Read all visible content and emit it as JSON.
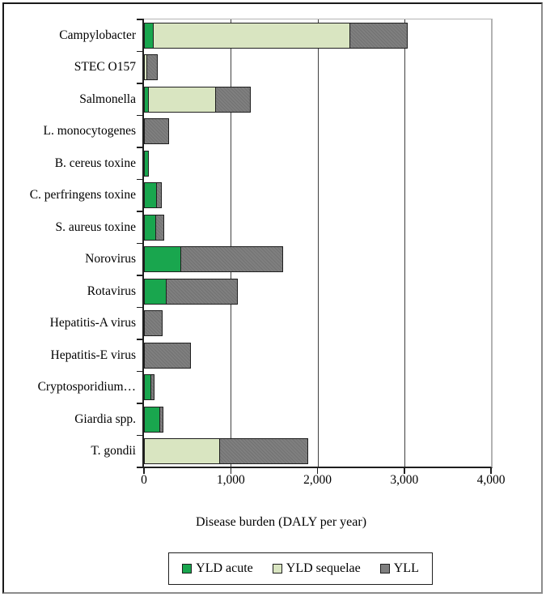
{
  "chart_data": {
    "type": "bar",
    "orientation": "horizontal",
    "stacked": true,
    "xlabel": "Disease burden (DALY per year)",
    "xlim": [
      0,
      4000
    ],
    "xticks": [
      {
        "value": 0,
        "label": "0"
      },
      {
        "value": 1000,
        "label": "1,000"
      },
      {
        "value": 2000,
        "label": "2,000"
      },
      {
        "value": 3000,
        "label": "3,000"
      },
      {
        "value": 4000,
        "label": "4,000"
      }
    ],
    "grid": "vertical",
    "legend_position": "bottom",
    "categories": [
      "Campylobacter",
      "STEC O157",
      "Salmonella",
      "L. monocytogenes",
      "B. cereus toxine",
      "C. perfringens toxine",
      "S. aureus toxine",
      "Norovirus",
      "Rotavirus",
      "Hepatitis-A virus",
      "Hepatitis-E virus",
      "Cryptosporidium…",
      "Giardia spp.",
      "T. gondii"
    ],
    "series": [
      {
        "name": "YLD acute",
        "color": "#19a64e",
        "values": [
          120,
          0,
          65,
          0,
          55,
          155,
          150,
          430,
          270,
          0,
          0,
          90,
          195,
          0
        ]
      },
      {
        "name": "YLD sequelae",
        "color": "#d9e5c1",
        "values": [
          2275,
          45,
          785,
          0,
          0,
          0,
          0,
          0,
          0,
          0,
          0,
          0,
          0,
          885
        ]
      },
      {
        "name": "YLL",
        "color": "#7f7f7f",
        "values": [
          670,
          125,
          410,
          290,
          0,
          65,
          100,
          1190,
          830,
          210,
          540,
          50,
          45,
          1025
        ]
      }
    ],
    "totals": [
      3065,
      170,
      1260,
      290,
      55,
      220,
      250,
      1620,
      1100,
      210,
      540,
      140,
      240,
      1910
    ]
  },
  "colors": {
    "accent_green": "#19a64e",
    "accent_light_green": "#d9e5c1",
    "accent_gray": "#7f7f7f",
    "bar_border": "#1f1f1f",
    "gridline": "#404040",
    "axis": "#1f1f1f",
    "plot_border": "#b3b3b3",
    "frame_dark": "#1a1a1a",
    "frame_light": "#8c8c8c",
    "background": "#ffffff"
  }
}
